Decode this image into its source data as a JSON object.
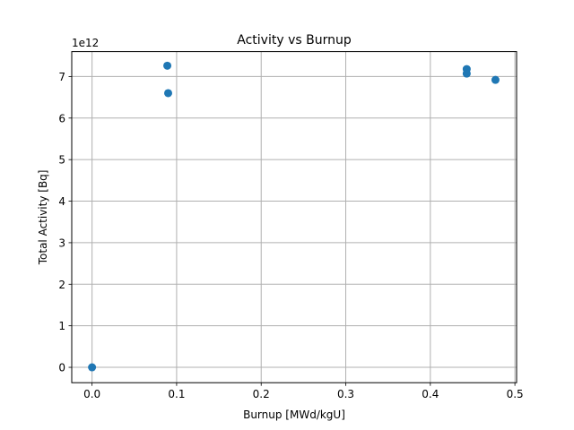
{
  "chart_data": {
    "type": "scatter",
    "title": "Activity vs Burnup",
    "xlabel": "Burnup [MWd/kgU]",
    "ylabel": "Total Activity [Bq]",
    "y_scale_label": "1e12",
    "xlim": [
      -0.024,
      0.502
    ],
    "ylim": [
      -0.37,
      7.6
    ],
    "y_multiplier": 1000000000000.0,
    "xticks": [
      0.0,
      0.1,
      0.2,
      0.3,
      0.4,
      0.5
    ],
    "xtick_labels": [
      "0.0",
      "0.1",
      "0.2",
      "0.3",
      "0.4",
      "0.5"
    ],
    "yticks": [
      0,
      1,
      2,
      3,
      4,
      5,
      6,
      7
    ],
    "ytick_labels": [
      "0",
      "1",
      "2",
      "3",
      "4",
      "5",
      "6",
      "7"
    ],
    "grid": true,
    "marker_color": "#1f77b4",
    "series": [
      {
        "x": [
          0.0,
          0.089,
          0.09,
          0.443,
          0.443,
          0.477
        ],
        "y": [
          0.0,
          7.26,
          6.6,
          7.18,
          7.07,
          6.92
        ]
      }
    ]
  }
}
